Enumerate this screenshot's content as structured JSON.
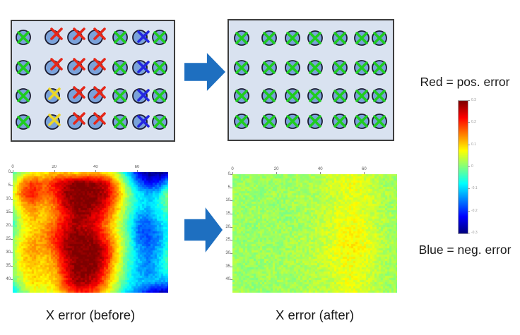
{
  "figure": {
    "legend_red": "Red = pos. error",
    "legend_blue": "Blue = neg. error",
    "caption_before": "X error (before)",
    "caption_after": "X error (after)"
  },
  "colors": {
    "arrow": "#1e6fc0",
    "panel_bg": "#d9e2f0",
    "panel_border": "#3d3d3d",
    "circle_fill": "#7aa2da",
    "circle_stroke": "#1b1b30",
    "mark_green": "#1ecc1e",
    "mark_red": "#e52719",
    "mark_yellow": "#ecd728",
    "mark_blue": "#2327e0",
    "text": "#1a1a1a"
  },
  "before_panel": {
    "description": "grid of fiducial circles with measured-position X marks colored by error",
    "marks": [
      [
        "g",
        "r",
        "r",
        "r",
        "g",
        "b",
        "g"
      ],
      [
        "g",
        "r",
        "r",
        "r",
        "g",
        "b",
        "g"
      ],
      [
        "g",
        "y",
        "r",
        "r",
        "g",
        "b",
        "g"
      ],
      [
        "g",
        "y",
        "r",
        "r",
        "g",
        "b",
        "g"
      ]
    ]
  },
  "after_panel": {
    "description": "same grid after correction, all marks green and centered",
    "marks": [
      [
        "g",
        "g",
        "g",
        "g",
        "g",
        "g",
        "g"
      ],
      [
        "g",
        "g",
        "g",
        "g",
        "g",
        "g",
        "g"
      ],
      [
        "g",
        "g",
        "g",
        "g",
        "g",
        "g",
        "g"
      ],
      [
        "g",
        "g",
        "g",
        "g",
        "g",
        "g",
        "g"
      ]
    ]
  },
  "mark_offsets": {
    "g": [
      0,
      0
    ],
    "r": [
      6,
      -5
    ],
    "y": [
      3,
      -3
    ],
    "b": [
      5,
      -1
    ]
  },
  "chart_data": [
    {
      "type": "heatmap",
      "name": "x_error_before",
      "title": "X error (before)",
      "colormap": "jet",
      "x_ticks": [
        0,
        20,
        40,
        60
      ],
      "y_ticks": [
        0,
        5,
        10,
        15,
        20,
        25,
        30,
        35,
        40
      ],
      "x_range": [
        0,
        75
      ],
      "y_range": [
        0,
        45
      ],
      "value_range": [
        -0.3,
        0.3
      ],
      "noise": 0.02,
      "grid": [
        [
          -0.02,
          0.03,
          0.06,
          0.08,
          0.1,
          0.1,
          0.08,
          0.1,
          0.1,
          0.08,
          0.02,
          -0.1,
          -0.24,
          -0.3,
          -0.3,
          -0.26
        ],
        [
          0.02,
          0.15,
          0.2,
          0.16,
          0.22,
          0.26,
          0.3,
          0.3,
          0.28,
          0.24,
          0.12,
          -0.02,
          -0.16,
          -0.22,
          -0.2,
          -0.1
        ],
        [
          0.05,
          0.18,
          0.22,
          0.16,
          0.2,
          0.28,
          0.3,
          0.3,
          0.3,
          0.26,
          0.15,
          0.02,
          -0.08,
          -0.12,
          -0.08,
          0.02
        ],
        [
          0.02,
          0.12,
          0.15,
          0.12,
          0.16,
          0.26,
          0.3,
          0.3,
          0.28,
          0.22,
          0.12,
          0.0,
          -0.08,
          -0.1,
          -0.06,
          0.0
        ],
        [
          -0.02,
          0.08,
          0.12,
          0.1,
          0.14,
          0.22,
          0.28,
          0.28,
          0.24,
          0.18,
          0.08,
          -0.02,
          -0.12,
          -0.14,
          -0.08,
          -0.04
        ],
        [
          -0.04,
          0.06,
          0.1,
          0.12,
          0.18,
          0.24,
          0.28,
          0.26,
          0.24,
          0.14,
          0.06,
          -0.04,
          -0.16,
          -0.18,
          -0.12,
          -0.06
        ],
        [
          0.0,
          0.08,
          0.12,
          0.14,
          0.2,
          0.26,
          0.3,
          0.3,
          0.26,
          0.18,
          0.08,
          -0.02,
          -0.16,
          -0.18,
          -0.14,
          -0.05
        ],
        [
          0.02,
          0.1,
          0.14,
          0.12,
          0.18,
          0.28,
          0.3,
          0.3,
          0.3,
          0.24,
          0.1,
          -0.02,
          -0.12,
          -0.16,
          -0.12,
          -0.04
        ],
        [
          0.0,
          0.1,
          0.12,
          0.1,
          0.14,
          0.24,
          0.3,
          0.3,
          0.3,
          0.22,
          0.08,
          -0.03,
          -0.1,
          -0.15,
          -0.1,
          -0.02
        ],
        [
          0.0,
          0.08,
          0.1,
          0.1,
          0.12,
          0.22,
          0.3,
          0.3,
          0.28,
          0.18,
          0.06,
          -0.04,
          -0.12,
          -0.15,
          -0.1,
          -0.05
        ],
        [
          -0.02,
          0.05,
          0.1,
          0.08,
          0.1,
          0.2,
          0.28,
          0.28,
          0.24,
          0.14,
          0.04,
          -0.06,
          -0.1,
          -0.12,
          -0.12,
          -0.12
        ],
        [
          -0.08,
          0.0,
          0.05,
          0.05,
          0.08,
          0.14,
          0.2,
          0.2,
          0.16,
          0.08,
          -0.02,
          -0.1,
          -0.16,
          -0.22,
          -0.26,
          -0.28
        ]
      ]
    },
    {
      "type": "heatmap",
      "name": "x_error_after",
      "title": "X error (after)",
      "colormap": "jet",
      "x_ticks": [
        0,
        20,
        40,
        60
      ],
      "y_ticks": [
        0,
        5,
        10,
        15,
        20,
        25,
        30,
        35,
        40
      ],
      "x_range": [
        0,
        75
      ],
      "y_range": [
        0,
        45
      ],
      "value_range": [
        -0.3,
        0.3
      ],
      "noise": 0.022,
      "grid": [
        [
          0.02,
          0.01,
          0.02,
          0.02,
          0.02,
          0.01,
          0.02,
          0.02,
          0.03,
          0.04,
          0.05,
          0.06,
          0.05,
          0.03,
          0.02,
          0.01
        ],
        [
          0.01,
          0.02,
          0.02,
          0.01,
          0.02,
          0.02,
          0.02,
          0.03,
          0.03,
          0.05,
          0.06,
          0.07,
          0.05,
          0.04,
          0.02,
          0.02
        ],
        [
          0.02,
          0.02,
          0.01,
          0.02,
          0.02,
          0.02,
          0.03,
          0.02,
          0.03,
          0.04,
          0.05,
          0.06,
          0.06,
          0.04,
          0.03,
          0.02
        ],
        [
          0.02,
          0.01,
          0.02,
          0.02,
          0.01,
          0.02,
          0.02,
          0.03,
          0.04,
          0.04,
          0.06,
          0.06,
          0.05,
          0.04,
          0.02,
          0.02
        ],
        [
          0.01,
          0.02,
          0.02,
          0.02,
          0.02,
          0.01,
          0.02,
          0.02,
          0.03,
          0.05,
          0.06,
          0.07,
          0.06,
          0.04,
          0.03,
          0.02
        ],
        [
          0.02,
          0.02,
          0.01,
          0.02,
          0.02,
          0.02,
          0.02,
          0.03,
          0.04,
          0.05,
          0.07,
          0.07,
          0.06,
          0.04,
          0.02,
          0.01
        ],
        [
          0.02,
          0.01,
          0.02,
          0.01,
          0.02,
          0.02,
          0.03,
          0.03,
          0.04,
          0.05,
          0.07,
          0.08,
          0.06,
          0.05,
          0.03,
          0.02
        ],
        [
          0.01,
          0.02,
          0.02,
          0.02,
          0.01,
          0.02,
          0.02,
          0.03,
          0.04,
          0.06,
          0.07,
          0.08,
          0.07,
          0.05,
          0.03,
          0.02
        ],
        [
          0.02,
          0.02,
          0.01,
          0.02,
          0.02,
          0.02,
          0.03,
          0.03,
          0.04,
          0.05,
          0.07,
          0.07,
          0.06,
          0.04,
          0.03,
          0.02
        ],
        [
          0.02,
          0.01,
          0.02,
          0.02,
          0.02,
          0.02,
          0.02,
          0.03,
          0.03,
          0.05,
          0.06,
          0.07,
          0.05,
          0.04,
          0.02,
          0.02
        ],
        [
          0.01,
          0.02,
          0.01,
          0.02,
          0.02,
          0.02,
          0.02,
          0.02,
          0.03,
          0.04,
          0.06,
          0.06,
          0.05,
          0.03,
          0.02,
          0.02
        ],
        [
          0.02,
          0.02,
          0.02,
          0.01,
          0.02,
          0.02,
          0.02,
          0.03,
          0.03,
          0.04,
          0.05,
          0.06,
          0.05,
          0.03,
          0.02,
          0.01
        ]
      ]
    },
    {
      "type": "colorbar",
      "colormap": "jet",
      "range": [
        -0.3,
        0.3
      ],
      "ticks": [
        0.3,
        0.2,
        0.1,
        0,
        -0.1,
        -0.2,
        -0.3
      ]
    }
  ]
}
